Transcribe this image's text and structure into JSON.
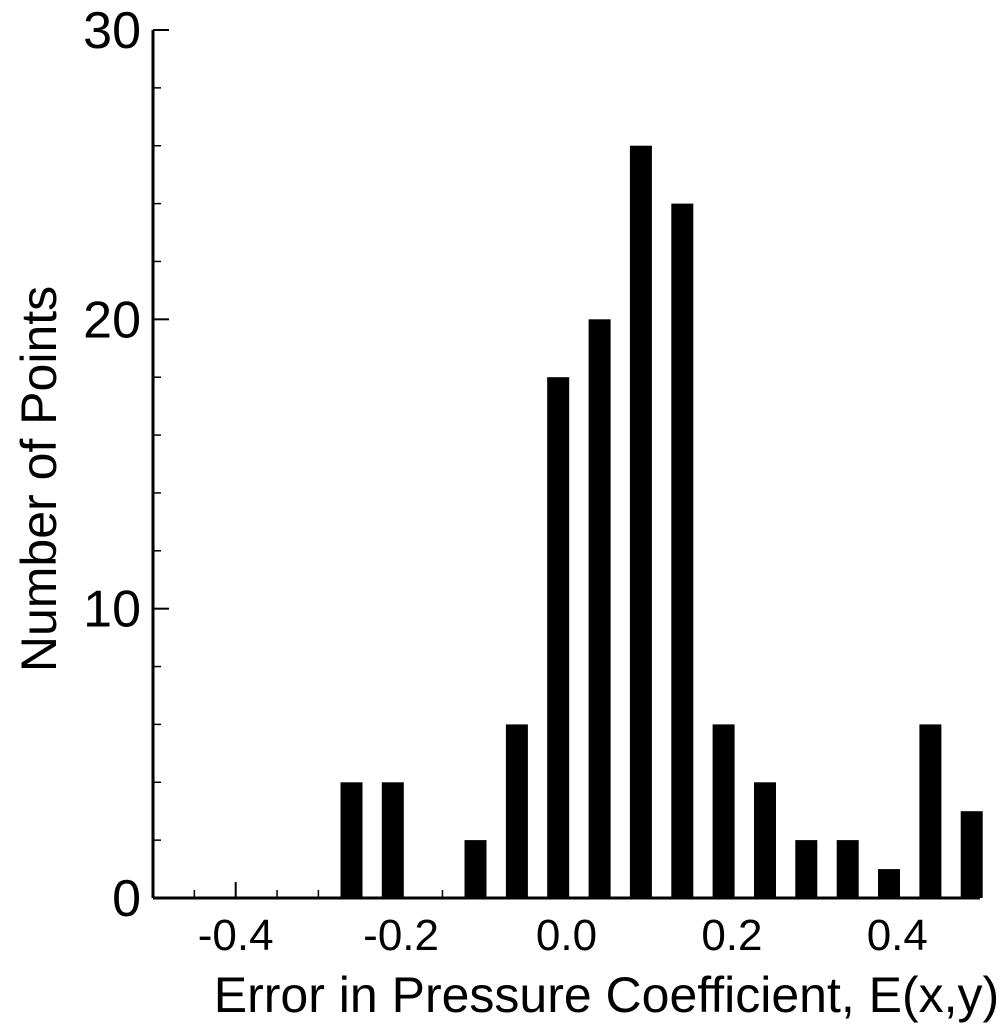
{
  "chart_data": {
    "type": "bar",
    "title": "",
    "xlabel": "Error in Pressure Coefficient, E(x,y)",
    "ylabel": "Number of Points",
    "xlim": [
      -0.5,
      0.5
    ],
    "ylim": [
      0,
      30
    ],
    "x_ticks": [
      -0.4,
      -0.2,
      0.0,
      0.2,
      0.4
    ],
    "x_tick_labels": [
      "-0.4",
      "-0.2",
      "0.0",
      "0.2",
      "0.4"
    ],
    "y_ticks": [
      0,
      10,
      20,
      30
    ],
    "y_tick_labels": [
      "0",
      "10",
      "20",
      "30"
    ],
    "grid": false,
    "bar_color": "#000000",
    "x": [
      -0.26,
      -0.21,
      -0.11,
      -0.06,
      -0.01,
      0.04,
      0.09,
      0.14,
      0.19,
      0.24,
      0.29,
      0.34,
      0.39,
      0.44,
      0.49
    ],
    "values": [
      4,
      4,
      2,
      6,
      18,
      20,
      26,
      24,
      6,
      4,
      2,
      2,
      1,
      6,
      3
    ]
  }
}
